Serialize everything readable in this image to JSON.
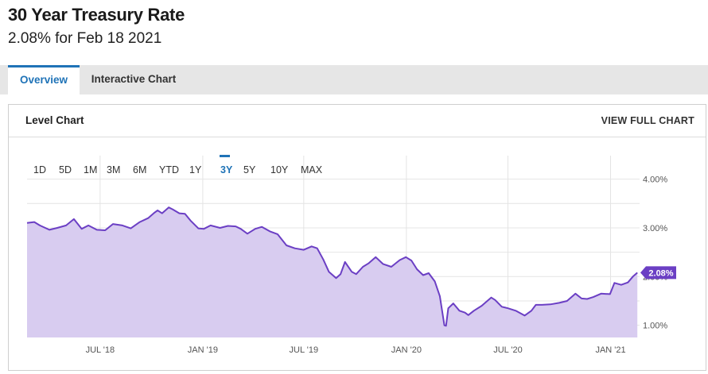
{
  "header": {
    "title": "30 Year Treasury Rate",
    "subtitle": "2.08% for Feb 18 2021"
  },
  "tabs": [
    {
      "label": "Overview",
      "active": true
    },
    {
      "label": "Interactive Chart",
      "active": false
    }
  ],
  "card": {
    "title": "Level Chart",
    "link": "VIEW FULL CHART"
  },
  "range_buttons": [
    "1D",
    "5D",
    "1M",
    "3M",
    "6M",
    "YTD",
    "1Y",
    "3Y",
    "5Y",
    "10Y",
    "MAX"
  ],
  "active_range": "3Y",
  "colors": {
    "line": "#6b3fc4",
    "area": "#d8ccf0",
    "accent": "#1f73b7",
    "badge": "#6b3fc4"
  },
  "chart_data": {
    "type": "area",
    "title": "",
    "xlabel": "",
    "ylabel": "",
    "ylim": [
      0.75,
      4.45
    ],
    "ytick_values": [
      1,
      2,
      3,
      4
    ],
    "ytick_labels": [
      "1.00%",
      "2.00%",
      "3.00%",
      "4.00%"
    ],
    "xtick_values": [
      "2018-07-01",
      "2019-01-01",
      "2019-07-01",
      "2020-01-01",
      "2020-07-01",
      "2021-01-01"
    ],
    "xtick_labels": [
      "JUL '18",
      "JAN '19",
      "JUL '19",
      "JAN '20",
      "JUL '20",
      "JAN '21"
    ],
    "x_range": [
      "2018-02-20",
      "2021-02-22"
    ],
    "grid": true,
    "last_value_label": "2.08%",
    "series": [
      {
        "x": [
          "2018-02-20",
          "2018-03-05",
          "2018-03-15",
          "2018-04-01",
          "2018-04-15",
          "2018-05-01",
          "2018-05-15",
          "2018-05-29",
          "2018-06-10",
          "2018-06-25",
          "2018-07-10",
          "2018-07-24",
          "2018-08-10",
          "2018-08-25",
          "2018-09-10",
          "2018-09-25",
          "2018-10-05",
          "2018-10-12",
          "2018-10-20",
          "2018-11-01",
          "2018-11-08",
          "2018-11-20",
          "2018-11-30",
          "2018-12-10",
          "2018-12-24",
          "2019-01-03",
          "2019-01-15",
          "2019-02-01",
          "2019-02-15",
          "2019-03-01",
          "2019-03-10",
          "2019-03-22",
          "2019-04-05",
          "2019-04-17",
          "2019-05-01",
          "2019-05-15",
          "2019-05-31",
          "2019-06-15",
          "2019-07-01",
          "2019-07-15",
          "2019-07-25",
          "2019-08-05",
          "2019-08-15",
          "2019-08-28",
          "2019-09-05",
          "2019-09-13",
          "2019-09-25",
          "2019-10-03",
          "2019-10-15",
          "2019-10-25",
          "2019-11-07",
          "2019-11-20",
          "2019-12-05",
          "2019-12-20",
          "2019-12-31",
          "2020-01-10",
          "2020-01-20",
          "2020-01-31",
          "2020-02-10",
          "2020-02-21",
          "2020-03-01",
          "2020-03-09",
          "2020-03-12",
          "2020-03-16",
          "2020-03-25",
          "2020-04-05",
          "2020-04-15",
          "2020-04-21",
          "2020-05-01",
          "2020-05-15",
          "2020-06-01",
          "2020-06-08",
          "2020-06-20",
          "2020-07-01",
          "2020-07-15",
          "2020-07-31",
          "2020-08-12",
          "2020-08-20",
          "2020-08-31",
          "2020-09-15",
          "2020-10-01",
          "2020-10-15",
          "2020-10-30",
          "2020-11-10",
          "2020-11-20",
          "2020-12-01",
          "2020-12-15",
          "2020-12-31",
          "2021-01-08",
          "2021-01-20",
          "2021-02-01",
          "2021-02-10",
          "2021-02-18"
        ],
        "values": [
          3.1,
          3.12,
          3.05,
          2.96,
          3.0,
          3.05,
          3.18,
          2.98,
          3.05,
          2.96,
          2.95,
          3.08,
          3.05,
          2.99,
          3.12,
          3.2,
          3.3,
          3.36,
          3.3,
          3.42,
          3.38,
          3.3,
          3.29,
          3.15,
          2.99,
          2.98,
          3.05,
          3.0,
          3.04,
          3.03,
          2.98,
          2.88,
          2.98,
          3.02,
          2.93,
          2.87,
          2.64,
          2.58,
          2.55,
          2.62,
          2.58,
          2.35,
          2.1,
          1.97,
          2.05,
          2.3,
          2.1,
          2.05,
          2.2,
          2.27,
          2.4,
          2.26,
          2.2,
          2.34,
          2.4,
          2.33,
          2.15,
          2.03,
          2.07,
          1.9,
          1.6,
          1.0,
          0.99,
          1.35,
          1.45,
          1.3,
          1.26,
          1.21,
          1.3,
          1.4,
          1.57,
          1.52,
          1.38,
          1.35,
          1.3,
          1.2,
          1.3,
          1.42,
          1.42,
          1.43,
          1.46,
          1.5,
          1.65,
          1.55,
          1.54,
          1.58,
          1.65,
          1.64,
          1.87,
          1.83,
          1.88,
          2.0,
          2.08
        ]
      }
    ]
  }
}
